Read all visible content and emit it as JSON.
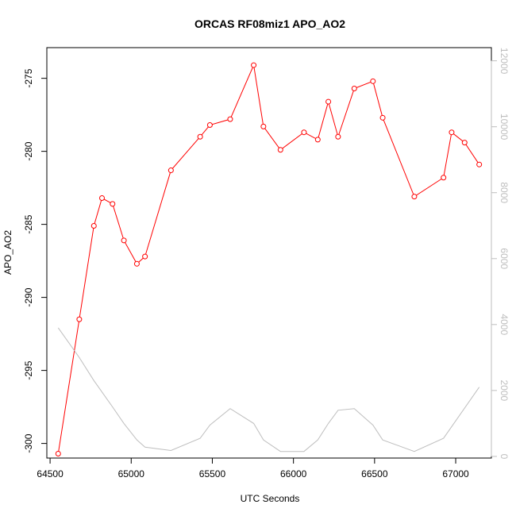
{
  "chart_data": {
    "type": "line",
    "title": "ORCAS RF08miz1 APO_AO2",
    "xlabel": "UTC Seconds",
    "ylabel": "APO_AO2",
    "xlim": [
      64480,
      67220
    ],
    "ylim": [
      -301,
      -272.9
    ],
    "y2lim": [
      -50,
      12400
    ],
    "x_ticks": [
      64500,
      65000,
      65500,
      66000,
      66500,
      67000
    ],
    "y_ticks": [
      -300,
      -295,
      -290,
      -285,
      -280,
      -275
    ],
    "y2_ticks": [
      0,
      2000,
      4000,
      6000,
      8000,
      10000,
      12000
    ],
    "series": [
      {
        "color": "#ff0000",
        "axis": "left",
        "markers": "open-circle",
        "x": [
          64550,
          64680,
          64770,
          64820,
          64885,
          64955,
          65035,
          65085,
          65245,
          65425,
          65485,
          65610,
          65755,
          65815,
          65920,
          66065,
          66150,
          66215,
          66275,
          66375,
          66490,
          66550,
          66745,
          66925,
          66975,
          67055,
          67145
        ],
        "values": [
          -300.7,
          -291.5,
          -285.1,
          -283.2,
          -283.6,
          -286.1,
          -287.7,
          -287.2,
          -281.3,
          -279.0,
          -278.2,
          -277.8,
          -274.1,
          -278.3,
          -279.9,
          -278.7,
          -279.2,
          -276.6,
          -279.0,
          -275.7,
          -275.2,
          -277.7,
          -283.1,
          -281.8,
          -278.7,
          -279.4,
          -280.9
        ]
      },
      {
        "color": "#bebebe",
        "axis": "right",
        "markers": "none",
        "x": [
          64550,
          64680,
          64770,
          64885,
          64955,
          65035,
          65085,
          65245,
          65425,
          65485,
          65610,
          65755,
          65815,
          65920,
          66065,
          66150,
          66215,
          66275,
          66375,
          66490,
          66550,
          66745,
          66925,
          67145
        ],
        "values": [
          3900,
          3000,
          2300,
          1500,
          1000,
          500,
          280,
          180,
          550,
          950,
          1450,
          1000,
          500,
          150,
          150,
          500,
          1000,
          1400,
          1450,
          950,
          500,
          150,
          550,
          2100
        ]
      }
    ]
  }
}
